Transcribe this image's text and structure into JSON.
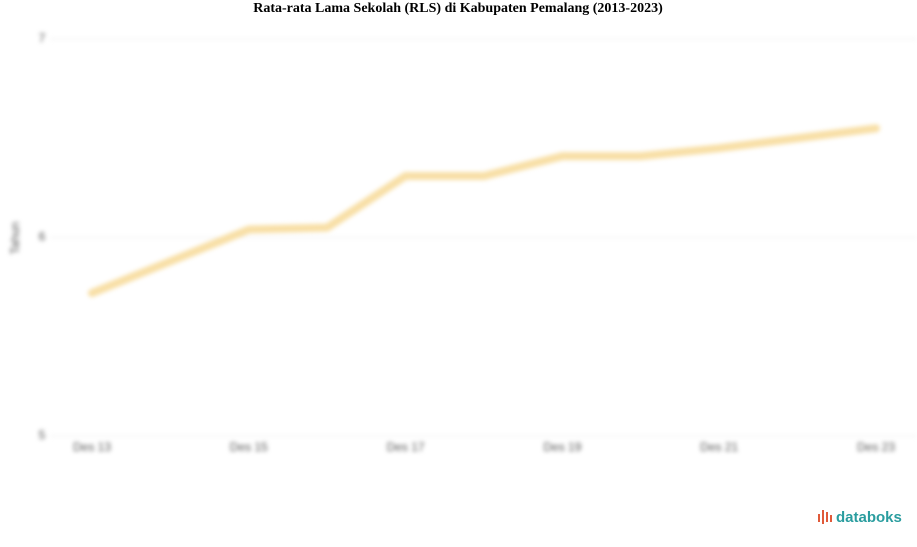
{
  "chart_data": {
    "type": "line",
    "title": "Rata-rata Lama Sekolah (RLS) di Kabupaten Pemalang (2013-2023)",
    "y_label": "Tahun",
    "categories": [
      "Des 13",
      null,
      "Des 15",
      null,
      "Des 17",
      null,
      "Des 19",
      null,
      "Des 21",
      null,
      "Des 23"
    ],
    "series": [
      {
        "name": "RLS",
        "color": "#f8dfa6",
        "values": [
          5.72,
          5.88,
          6.04,
          6.05,
          6.31,
          6.31,
          6.41,
          6.41,
          6.45,
          6.5,
          6.55
        ]
      }
    ],
    "ylim": [
      5,
      7
    ],
    "yticks": [
      5,
      6,
      7
    ],
    "grid": true
  },
  "brand": "databoks"
}
